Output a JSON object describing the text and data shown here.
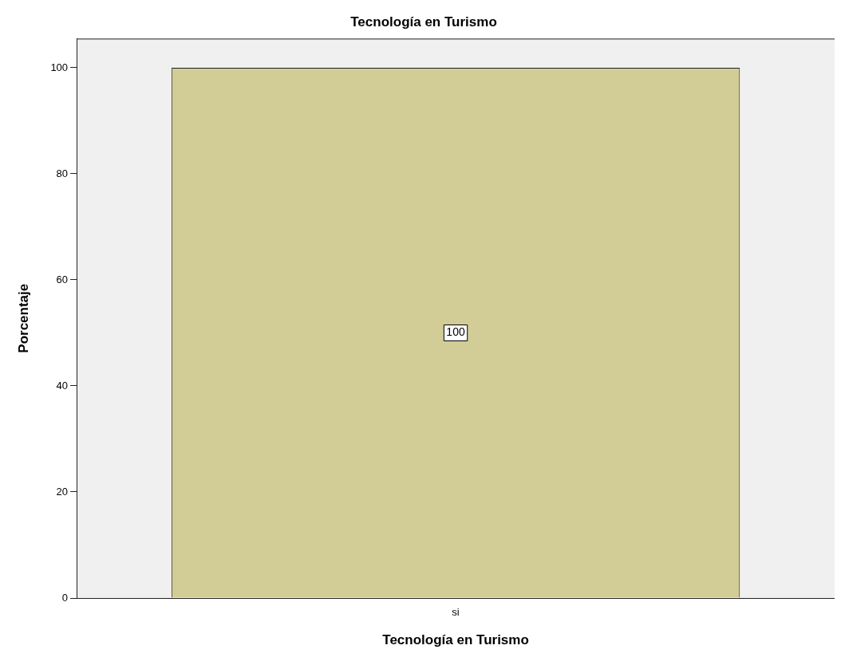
{
  "chart_data": {
    "type": "bar",
    "title": "Tecnología en Turismo",
    "xlabel": "Tecnología en Turismo",
    "ylabel": "Porcentaje",
    "categories": [
      "si"
    ],
    "values": [
      100
    ],
    "color": "#d2cc96",
    "ylim": [
      0,
      105.5
    ],
    "yticks": [
      0,
      20,
      40,
      60,
      80,
      100
    ],
    "grid": false,
    "legend": false,
    "data_labels": true
  }
}
